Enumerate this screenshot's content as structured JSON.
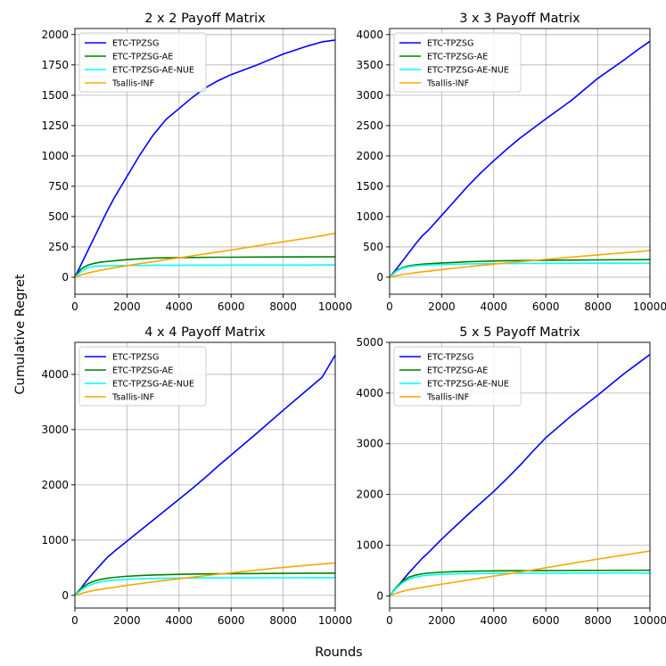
{
  "figure": {
    "xlabel": "Rounds",
    "ylabel": "Cumulative Regret"
  },
  "series_colors": {
    "ETC-TPZSG": "#0000ff",
    "ETC-TPZSG-AE": "#008000",
    "ETC-TPZSG-AE-NUE": "#00ffff",
    "Tsallis-INF": "#ffa500"
  },
  "chart_data": [
    {
      "type": "line",
      "title": "2 x 2 Payoff Matrix",
      "legend_position": "top-left",
      "xlim": [
        0,
        10000
      ],
      "ylim": [
        -140,
        2050
      ],
      "xticks": [
        0,
        2000,
        4000,
        6000,
        8000,
        10000
      ],
      "yticks": [
        0,
        250,
        500,
        750,
        1000,
        1250,
        1500,
        1750,
        2000
      ],
      "x": [
        0,
        250,
        500,
        750,
        1000,
        1250,
        1500,
        2000,
        2500,
        3000,
        3500,
        4000,
        4500,
        5000,
        5500,
        6000,
        7000,
        8000,
        9000,
        9500,
        10000
      ],
      "series": [
        {
          "name": "ETC-TPZSG",
          "values": [
            0,
            110,
            220,
            330,
            440,
            550,
            650,
            830,
            1010,
            1170,
            1300,
            1390,
            1480,
            1560,
            1620,
            1670,
            1750,
            1840,
            1910,
            1940,
            1955
          ]
        },
        {
          "name": "ETC-TPZSG-AE",
          "values": [
            0,
            70,
            100,
            115,
            125,
            130,
            135,
            145,
            152,
            158,
            160,
            162,
            163,
            164,
            165,
            165,
            166,
            167,
            168,
            168,
            168
          ]
        },
        {
          "name": "ETC-TPZSG-AE-NUE",
          "values": [
            0,
            50,
            80,
            90,
            93,
            95,
            96,
            97,
            97,
            98,
            98,
            98,
            99,
            99,
            99,
            100,
            100,
            100,
            100,
            101,
            101
          ]
        },
        {
          "name": "Tsallis-INF",
          "values": [
            0,
            20,
            35,
            47,
            58,
            68,
            77,
            95,
            112,
            128,
            145,
            160,
            176,
            192,
            208,
            224,
            258,
            292,
            325,
            343,
            362
          ]
        }
      ]
    },
    {
      "type": "line",
      "title": "3 x 3 Payoff Matrix",
      "legend_position": "top-left",
      "xlim": [
        0,
        10000
      ],
      "ylim": [
        -280,
        4100
      ],
      "xticks": [
        0,
        2000,
        4000,
        6000,
        8000,
        10000
      ],
      "yticks": [
        0,
        500,
        1000,
        1500,
        2000,
        2500,
        3000,
        3500,
        4000
      ],
      "x": [
        0,
        250,
        500,
        750,
        1000,
        1250,
        1500,
        2000,
        2500,
        3000,
        3500,
        4000,
        4500,
        5000,
        5500,
        6000,
        7000,
        8000,
        9000,
        9500,
        10000
      ],
      "series": [
        {
          "name": "ETC-TPZSG",
          "values": [
            0,
            130,
            270,
            410,
            550,
            680,
            780,
            1020,
            1260,
            1500,
            1720,
            1920,
            2110,
            2290,
            2450,
            2610,
            2920,
            3280,
            3580,
            3740,
            3890
          ]
        },
        {
          "name": "ETC-TPZSG-AE",
          "values": [
            0,
            110,
            160,
            190,
            205,
            215,
            222,
            235,
            245,
            255,
            262,
            268,
            272,
            275,
            278,
            280,
            283,
            286,
            288,
            289,
            290
          ]
        },
        {
          "name": "ETC-TPZSG-AE-NUE",
          "values": [
            0,
            95,
            150,
            175,
            188,
            196,
            202,
            210,
            215,
            219,
            222,
            224,
            226,
            227,
            228,
            229,
            230,
            231,
            232,
            232,
            233
          ]
        },
        {
          "name": "Tsallis-INF",
          "values": [
            0,
            25,
            45,
            60,
            75,
            88,
            100,
            125,
            150,
            172,
            195,
            215,
            236,
            255,
            275,
            295,
            332,
            368,
            402,
            420,
            440
          ]
        }
      ]
    },
    {
      "type": "line",
      "title": "4 x 4 Payoff Matrix",
      "legend_position": "top-left",
      "xlim": [
        0,
        10000
      ],
      "ylim": [
        -230,
        4580
      ],
      "xticks": [
        0,
        2000,
        4000,
        6000,
        8000,
        10000
      ],
      "yticks": [
        0,
        1000,
        2000,
        3000,
        4000
      ],
      "x": [
        0,
        250,
        500,
        750,
        1000,
        1250,
        1500,
        2000,
        2500,
        3000,
        3500,
        4000,
        4500,
        5000,
        5500,
        6000,
        7000,
        8000,
        9000,
        9500,
        10000
      ],
      "series": [
        {
          "name": "ETC-TPZSG",
          "values": [
            0,
            140,
            290,
            430,
            560,
            690,
            790,
            980,
            1170,
            1360,
            1550,
            1740,
            1930,
            2130,
            2340,
            2540,
            2940,
            3350,
            3750,
            3950,
            4350
          ]
        },
        {
          "name": "ETC-TPZSG-AE",
          "values": [
            0,
            130,
            210,
            260,
            290,
            310,
            325,
            345,
            358,
            368,
            375,
            381,
            385,
            388,
            390,
            392,
            395,
            398,
            400,
            401,
            402
          ]
        },
        {
          "name": "ETC-TPZSG-AE-NUE",
          "values": [
            0,
            100,
            170,
            215,
            245,
            262,
            275,
            290,
            300,
            305,
            309,
            312,
            314,
            315,
            316,
            317,
            318,
            319,
            320,
            320,
            320
          ]
        },
        {
          "name": "Tsallis-INF",
          "values": [
            0,
            35,
            65,
            90,
            110,
            128,
            145,
            180,
            212,
            243,
            272,
            300,
            328,
            355,
            382,
            408,
            458,
            505,
            548,
            568,
            585
          ]
        }
      ]
    },
    {
      "type": "line",
      "title": "5 x 5 Payoff Matrix",
      "legend_position": "top-left",
      "xlim": [
        0,
        10000
      ],
      "ylim": [
        -240,
        5000
      ],
      "xticks": [
        0,
        2000,
        4000,
        6000,
        8000,
        10000
      ],
      "yticks": [
        0,
        1000,
        2000,
        3000,
        4000,
        5000
      ],
      "x": [
        0,
        250,
        500,
        750,
        1000,
        1250,
        1500,
        2000,
        2500,
        3000,
        3500,
        4000,
        4500,
        5000,
        5500,
        6000,
        7000,
        8000,
        9000,
        9500,
        10000
      ],
      "series": [
        {
          "name": "ETC-TPZSG",
          "values": [
            0,
            150,
            310,
            460,
            600,
            740,
            860,
            1120,
            1360,
            1600,
            1830,
            2060,
            2310,
            2570,
            2850,
            3120,
            3560,
            3960,
            4380,
            4570,
            4760
          ]
        },
        {
          "name": "ETC-TPZSG-AE",
          "values": [
            0,
            170,
            290,
            370,
            410,
            435,
            450,
            468,
            478,
            485,
            490,
            493,
            495,
            497,
            498,
            499,
            501,
            503,
            504,
            505,
            506
          ]
        },
        {
          "name": "ETC-TPZSG-AE-NUE",
          "values": [
            0,
            150,
            260,
            330,
            370,
            395,
            410,
            425,
            433,
            438,
            441,
            443,
            445,
            446,
            447,
            448,
            449,
            450,
            451,
            451,
            452
          ]
        },
        {
          "name": "Tsallis-INF",
          "values": [
            0,
            50,
            90,
            120,
            145,
            168,
            190,
            230,
            270,
            310,
            350,
            390,
            430,
            470,
            512,
            555,
            640,
            725,
            805,
            845,
            885
          ]
        }
      ]
    }
  ]
}
